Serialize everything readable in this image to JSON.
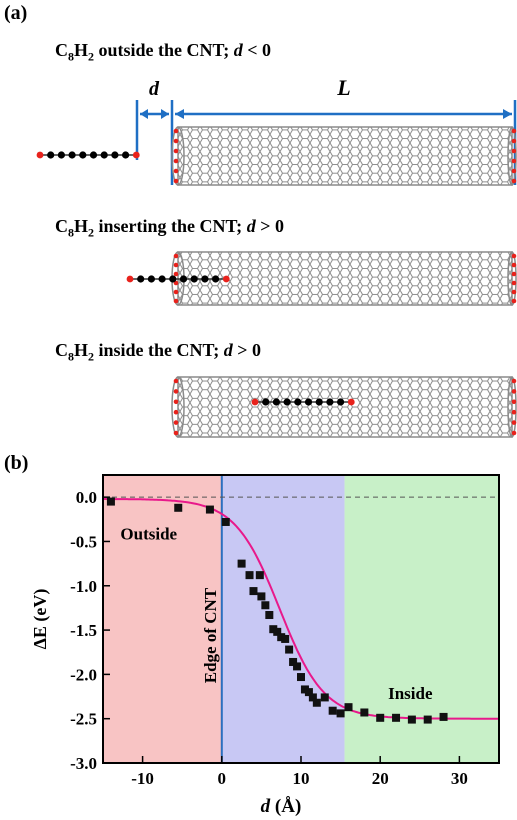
{
  "panel_a": {
    "label": "(a)",
    "molecule": {
      "c": "C",
      "c_sub": "8",
      "h": "H",
      "h_sub": "2"
    },
    "states": [
      {
        "text": " outside the CNT; ",
        "var": "d",
        "cond": " < 0"
      },
      {
        "text": " inserting the CNT; ",
        "var": "d",
        "cond": " > 0"
      },
      {
        "text": " inside the CNT; ",
        "var": "d",
        "cond": " > 0"
      }
    ],
    "dim_d": "d",
    "dim_L": "L",
    "colors": {
      "carbon": "#000000",
      "hydrogen": "#e8221c",
      "tube": "#8a8a8a",
      "dimension": "#1f6fc4"
    }
  },
  "panel_b": {
    "label": "(b)",
    "region_labels": {
      "outside": "Outside",
      "edge": "Edge of CNT",
      "inside": "Inside"
    },
    "region_colors": {
      "outside": "#f8c4c4",
      "middle": "#c8c8f4",
      "inside": "#c8f0c8"
    },
    "edge_line_color": "#2b6fbf",
    "fit_color": "#e8198b"
  },
  "chart_data": {
    "type": "scatter",
    "xlabel_var": "d",
    "xlabel_unit": " (Å)",
    "ylabel": "ΔE (eV)",
    "xlim": [
      -15,
      35
    ],
    "ylim": [
      -3.0,
      0.25
    ],
    "xticks": [
      -10,
      0,
      10,
      20,
      30
    ],
    "yticks": [
      0.0,
      -0.5,
      -1.0,
      -1.5,
      -2.0,
      -2.5,
      -3.0
    ],
    "regions": [
      [
        -15,
        0
      ],
      [
        0,
        15.5
      ],
      [
        15.5,
        35
      ]
    ],
    "reference_line": 0.0,
    "fit": {
      "type": "sigmoid",
      "top": -0.02,
      "bottom": -2.5,
      "x0": 7.3,
      "width": 2.8
    },
    "points": [
      [
        -14,
        -0.05
      ],
      [
        -5.5,
        -0.12
      ],
      [
        -1.5,
        -0.14
      ],
      [
        0.5,
        -0.28
      ],
      [
        2.5,
        -0.75
      ],
      [
        3.5,
        -0.88
      ],
      [
        4.0,
        -1.06
      ],
      [
        4.8,
        -0.88
      ],
      [
        5.0,
        -1.12
      ],
      [
        5.5,
        -1.22
      ],
      [
        6.0,
        -1.33
      ],
      [
        6.5,
        -1.49
      ],
      [
        7.0,
        -1.52
      ],
      [
        7.5,
        -1.58
      ],
      [
        8.0,
        -1.6
      ],
      [
        8.5,
        -1.72
      ],
      [
        9.0,
        -1.86
      ],
      [
        9.5,
        -1.91
      ],
      [
        10.0,
        -2.03
      ],
      [
        10.5,
        -2.17
      ],
      [
        11.0,
        -2.2
      ],
      [
        11.5,
        -2.26
      ],
      [
        12.0,
        -2.32
      ],
      [
        13.0,
        -2.26
      ],
      [
        14.0,
        -2.41
      ],
      [
        15.0,
        -2.44
      ],
      [
        16.0,
        -2.37
      ],
      [
        18.0,
        -2.43
      ],
      [
        20.0,
        -2.49
      ],
      [
        22.0,
        -2.49
      ],
      [
        24.0,
        -2.51
      ],
      [
        26.0,
        -2.51
      ],
      [
        28.0,
        -2.48
      ]
    ]
  }
}
